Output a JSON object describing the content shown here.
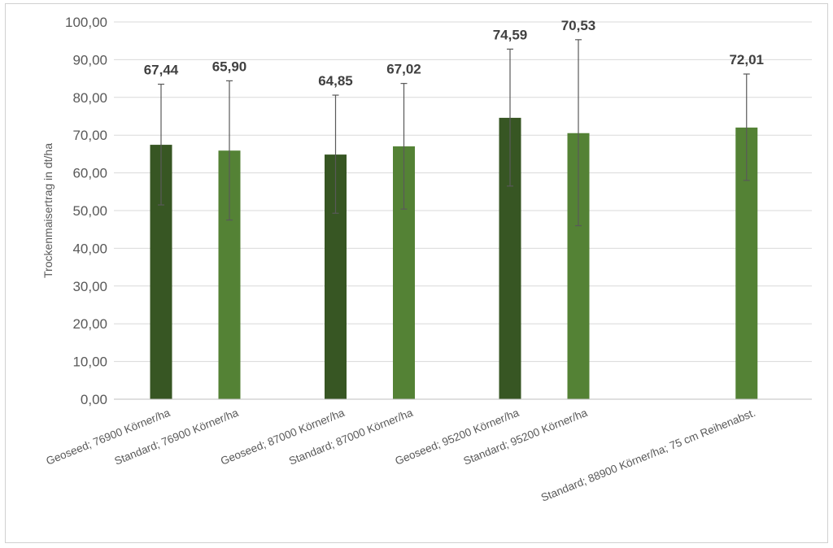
{
  "chart_data": {
    "type": "bar",
    "title": "",
    "xlabel": "",
    "ylabel": "Trockenmaisertrag in dt/ha",
    "ylim": [
      0,
      100
    ],
    "ytick_step": 10,
    "ytick_labels": [
      "0,00",
      "10,00",
      "20,00",
      "30,00",
      "40,00",
      "50,00",
      "60,00",
      "70,00",
      "80,00",
      "90,00",
      "100,00"
    ],
    "grid": true,
    "legend": "none",
    "groups": [
      {
        "bars": [
          {
            "label": "Geoseed; 76900 Körner/ha",
            "value": 67.44,
            "value_label": "67,44",
            "err_low": 51.5,
            "err_high": 83.5,
            "kind": "geoseed"
          },
          {
            "label": "Standard; 76900 Körner/ha",
            "value": 65.9,
            "value_label": "65,90",
            "err_low": 47.5,
            "err_high": 84.4,
            "kind": "standard"
          }
        ]
      },
      {
        "bars": [
          {
            "label": "Geoseed; 87000 Körner/ha",
            "value": 64.85,
            "value_label": "64,85",
            "err_low": 49.3,
            "err_high": 80.6,
            "kind": "geoseed"
          },
          {
            "label": "Standard; 87000 Körner/ha",
            "value": 67.02,
            "value_label": "67,02",
            "err_low": 50.4,
            "err_high": 83.7,
            "kind": "standard"
          }
        ]
      },
      {
        "bars": [
          {
            "label": "Geoseed; 95200 Körner/ha",
            "value": 74.59,
            "value_label": "74,59",
            "err_low": 56.5,
            "err_high": 92.8,
            "kind": "geoseed"
          },
          {
            "label": "Standard; 95200 Körner/ha",
            "value": 70.53,
            "value_label": "70,53",
            "err_low": 46.0,
            "err_high": 95.3,
            "kind": "standard"
          }
        ]
      },
      {
        "bars": [
          {
            "label": "Standard; 88900 Körner/ha; 75 cm Reihenabst.",
            "value": 72.01,
            "value_label": "72,01",
            "err_low": 58.0,
            "err_high": 86.2,
            "kind": "standard"
          }
        ]
      }
    ],
    "colors": {
      "geoseed": "#375623",
      "standard": "#548235",
      "grid": "#d9d9d9",
      "axis": "#bfbfbf",
      "error": "#595959"
    }
  }
}
